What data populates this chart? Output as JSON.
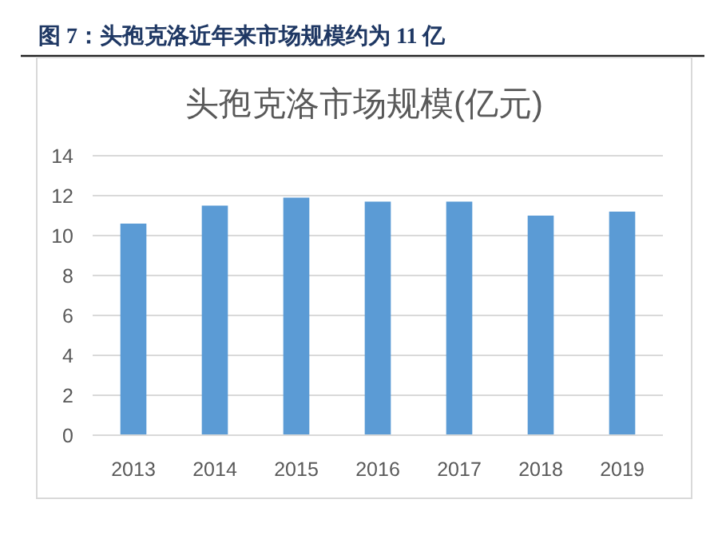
{
  "chart_data": {
    "type": "bar",
    "title": "图 7：头孢克洛近年来市场规模约为 11 亿",
    "subtitle": "头孢克洛市场规模(亿元)",
    "categories": [
      "2013",
      "2014",
      "2015",
      "2016",
      "2017",
      "2018",
      "2019"
    ],
    "values": [
      10.6,
      11.5,
      11.9,
      11.7,
      11.7,
      11.0,
      11.2
    ],
    "color": "#5b9bd5",
    "ylim": [
      0,
      14
    ],
    "yticks": [
      0,
      2,
      4,
      6,
      8,
      10,
      12,
      14
    ],
    "grid": "y"
  }
}
